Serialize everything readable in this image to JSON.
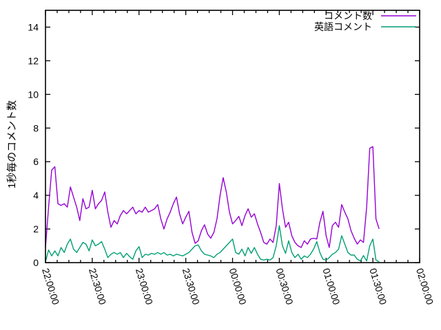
{
  "chart_data": {
    "type": "line",
    "title": "",
    "xlabel": "",
    "ylabel": "1秒毎のコメント数",
    "ylim": [
      0,
      15
    ],
    "xlim_minutes": [
      0,
      240
    ],
    "grid": false,
    "legend_position": "top-right",
    "y_tick_values": [
      0,
      2,
      4,
      6,
      8,
      10,
      12,
      14
    ],
    "x_tick_minutes": [
      0,
      30,
      60,
      90,
      120,
      150,
      180,
      210,
      240
    ],
    "x_tick_labels": [
      "22:00:00",
      "22:30:00",
      "23:00:00",
      "23:30:00",
      "00:00:00",
      "00:30:00",
      "01:00:00",
      "01:30:00",
      "02:00:00"
    ],
    "x_minor_step_minutes": 7.5,
    "x_minutes": [
      0,
      2,
      4,
      6,
      8,
      10,
      12,
      14,
      16,
      18,
      20,
      22,
      24,
      26,
      28,
      30,
      32,
      34,
      36,
      38,
      40,
      42,
      44,
      46,
      48,
      50,
      52,
      54,
      56,
      58,
      60,
      62,
      64,
      66,
      68,
      70,
      72,
      74,
      76,
      78,
      80,
      82,
      84,
      86,
      88,
      90,
      92,
      94,
      96,
      98,
      100,
      102,
      104,
      106,
      108,
      110,
      112,
      114,
      116,
      118,
      120,
      122,
      124,
      126,
      128,
      130,
      132,
      134,
      136,
      138,
      140,
      142,
      144,
      146,
      148,
      150,
      152,
      154,
      156,
      158,
      160,
      162,
      164,
      166,
      168,
      170,
      172,
      174,
      176,
      178,
      180,
      182,
      184,
      186,
      188,
      190,
      192,
      194,
      196,
      198,
      200,
      202,
      204,
      206,
      208,
      210,
      212,
      214
    ],
    "series": [
      {
        "name": "コメント数",
        "color": "#9400d3",
        "values": [
          0.9,
          3.3,
          5.5,
          5.7,
          3.5,
          3.4,
          3.5,
          3.3,
          4.5,
          3.9,
          3.3,
          2.5,
          3.8,
          3.2,
          3.3,
          4.3,
          3.2,
          3.5,
          3.7,
          4.2,
          3.0,
          2.1,
          2.5,
          2.3,
          2.8,
          3.1,
          2.9,
          3.1,
          3.3,
          2.9,
          3.1,
          3.0,
          3.3,
          3.0,
          3.1,
          3.2,
          3.45,
          2.6,
          2.0,
          2.6,
          3.0,
          3.5,
          3.9,
          2.9,
          2.3,
          2.7,
          3.05,
          1.8,
          1.15,
          1.3,
          1.9,
          2.25,
          1.7,
          1.45,
          1.8,
          2.6,
          4.0,
          5.05,
          4.2,
          3.0,
          2.3,
          2.5,
          2.75,
          2.2,
          2.8,
          3.2,
          2.7,
          2.9,
          2.3,
          1.8,
          1.2,
          1.1,
          1.4,
          1.2,
          2.2,
          4.7,
          3.2,
          2.1,
          2.4,
          1.6,
          1.2,
          1.0,
          0.9,
          1.3,
          1.1,
          1.4,
          1.45,
          1.4,
          2.4,
          3.05,
          1.6,
          0.9,
          2.2,
          2.4,
          2.1,
          3.45,
          3.0,
          2.6,
          1.9,
          1.45,
          1.1,
          1.35,
          1.2,
          3.3,
          6.8,
          6.9,
          2.6,
          2.0
        ]
      },
      {
        "name": "英語コメント",
        "color": "#009e73",
        "values": [
          0.05,
          0.75,
          0.4,
          0.7,
          0.4,
          0.9,
          0.6,
          1.1,
          1.4,
          0.8,
          0.6,
          0.9,
          1.2,
          1.1,
          0.7,
          1.35,
          1.0,
          1.1,
          1.25,
          0.8,
          0.3,
          0.5,
          0.6,
          0.5,
          0.6,
          0.3,
          0.55,
          0.35,
          0.2,
          0.7,
          0.95,
          0.3,
          0.5,
          0.45,
          0.55,
          0.5,
          0.6,
          0.5,
          0.6,
          0.45,
          0.5,
          0.4,
          0.5,
          0.45,
          0.4,
          0.5,
          0.6,
          0.8,
          1.0,
          1.05,
          0.7,
          0.5,
          0.45,
          0.4,
          0.3,
          0.5,
          0.6,
          0.8,
          1.0,
          1.2,
          1.4,
          0.6,
          0.5,
          0.8,
          0.4,
          0.9,
          0.55,
          0.9,
          0.5,
          0.2,
          0.15,
          0.2,
          0.15,
          0.3,
          1.0,
          2.2,
          1.0,
          0.55,
          1.3,
          0.6,
          0.3,
          0.5,
          0.2,
          0.4,
          0.3,
          0.5,
          0.8,
          1.25,
          0.6,
          0.2,
          0.15,
          0.3,
          0.5,
          0.6,
          0.8,
          1.6,
          1.1,
          0.6,
          0.45,
          0.45,
          0.2,
          0.1,
          0.42,
          0.1,
          1.0,
          1.4,
          0.15,
          0.05
        ]
      }
    ]
  }
}
